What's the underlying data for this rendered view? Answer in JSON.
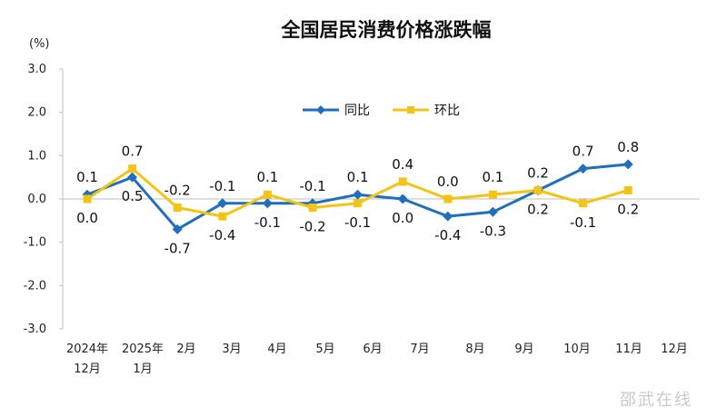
{
  "chart_data": {
    "type": "line",
    "title": "全国居民消费价格涨跌幅",
    "unit_label": "(%)",
    "ylim": [
      -3.0,
      3.0
    ],
    "yticks": [
      "3.0",
      "2.0",
      "1.0",
      "0.0",
      "-1.0",
      "-2.0",
      "-3.0"
    ],
    "grid": false,
    "legend_position": "top-center",
    "categories": [
      [
        "2024年",
        "12月"
      ],
      [
        "2025年",
        "1月"
      ],
      [
        "2月"
      ],
      [
        "3月"
      ],
      [
        "4月"
      ],
      [
        "5月"
      ],
      [
        "6月"
      ],
      [
        "7月"
      ],
      [
        "8月"
      ],
      [
        "9月"
      ],
      [
        "10月"
      ],
      [
        "11月"
      ],
      [
        "12月"
      ]
    ],
    "series": [
      {
        "name": "同比",
        "color": "#1f6fba",
        "marker": "diamond",
        "values": [
          0.1,
          0.5,
          -0.7,
          -0.1,
          -0.1,
          -0.1,
          0.1,
          0.0,
          -0.4,
          -0.3,
          0.2,
          0.7,
          0.8
        ],
        "labels": [
          "0.1",
          "0.5",
          "-0.7",
          "-0.1",
          "-0.1",
          "-0.1",
          "0.1",
          "0.0",
          "-0.4",
          "-0.3",
          "0.2",
          "0.7",
          "0.8"
        ]
      },
      {
        "name": "环比",
        "color": "#f2c416",
        "marker": "square",
        "values": [
          0.0,
          0.7,
          -0.2,
          -0.4,
          0.1,
          -0.2,
          -0.1,
          0.4,
          0.0,
          0.1,
          0.2,
          -0.1,
          0.2
        ],
        "labels": [
          "0.0",
          "0.7",
          "-0.2",
          "-0.4",
          "0.1",
          "-0.2",
          "-0.1",
          "0.4",
          "0.0",
          "0.1",
          "0.2",
          "-0.1",
          "0.2"
        ]
      }
    ]
  },
  "watermark": "邵武在线"
}
